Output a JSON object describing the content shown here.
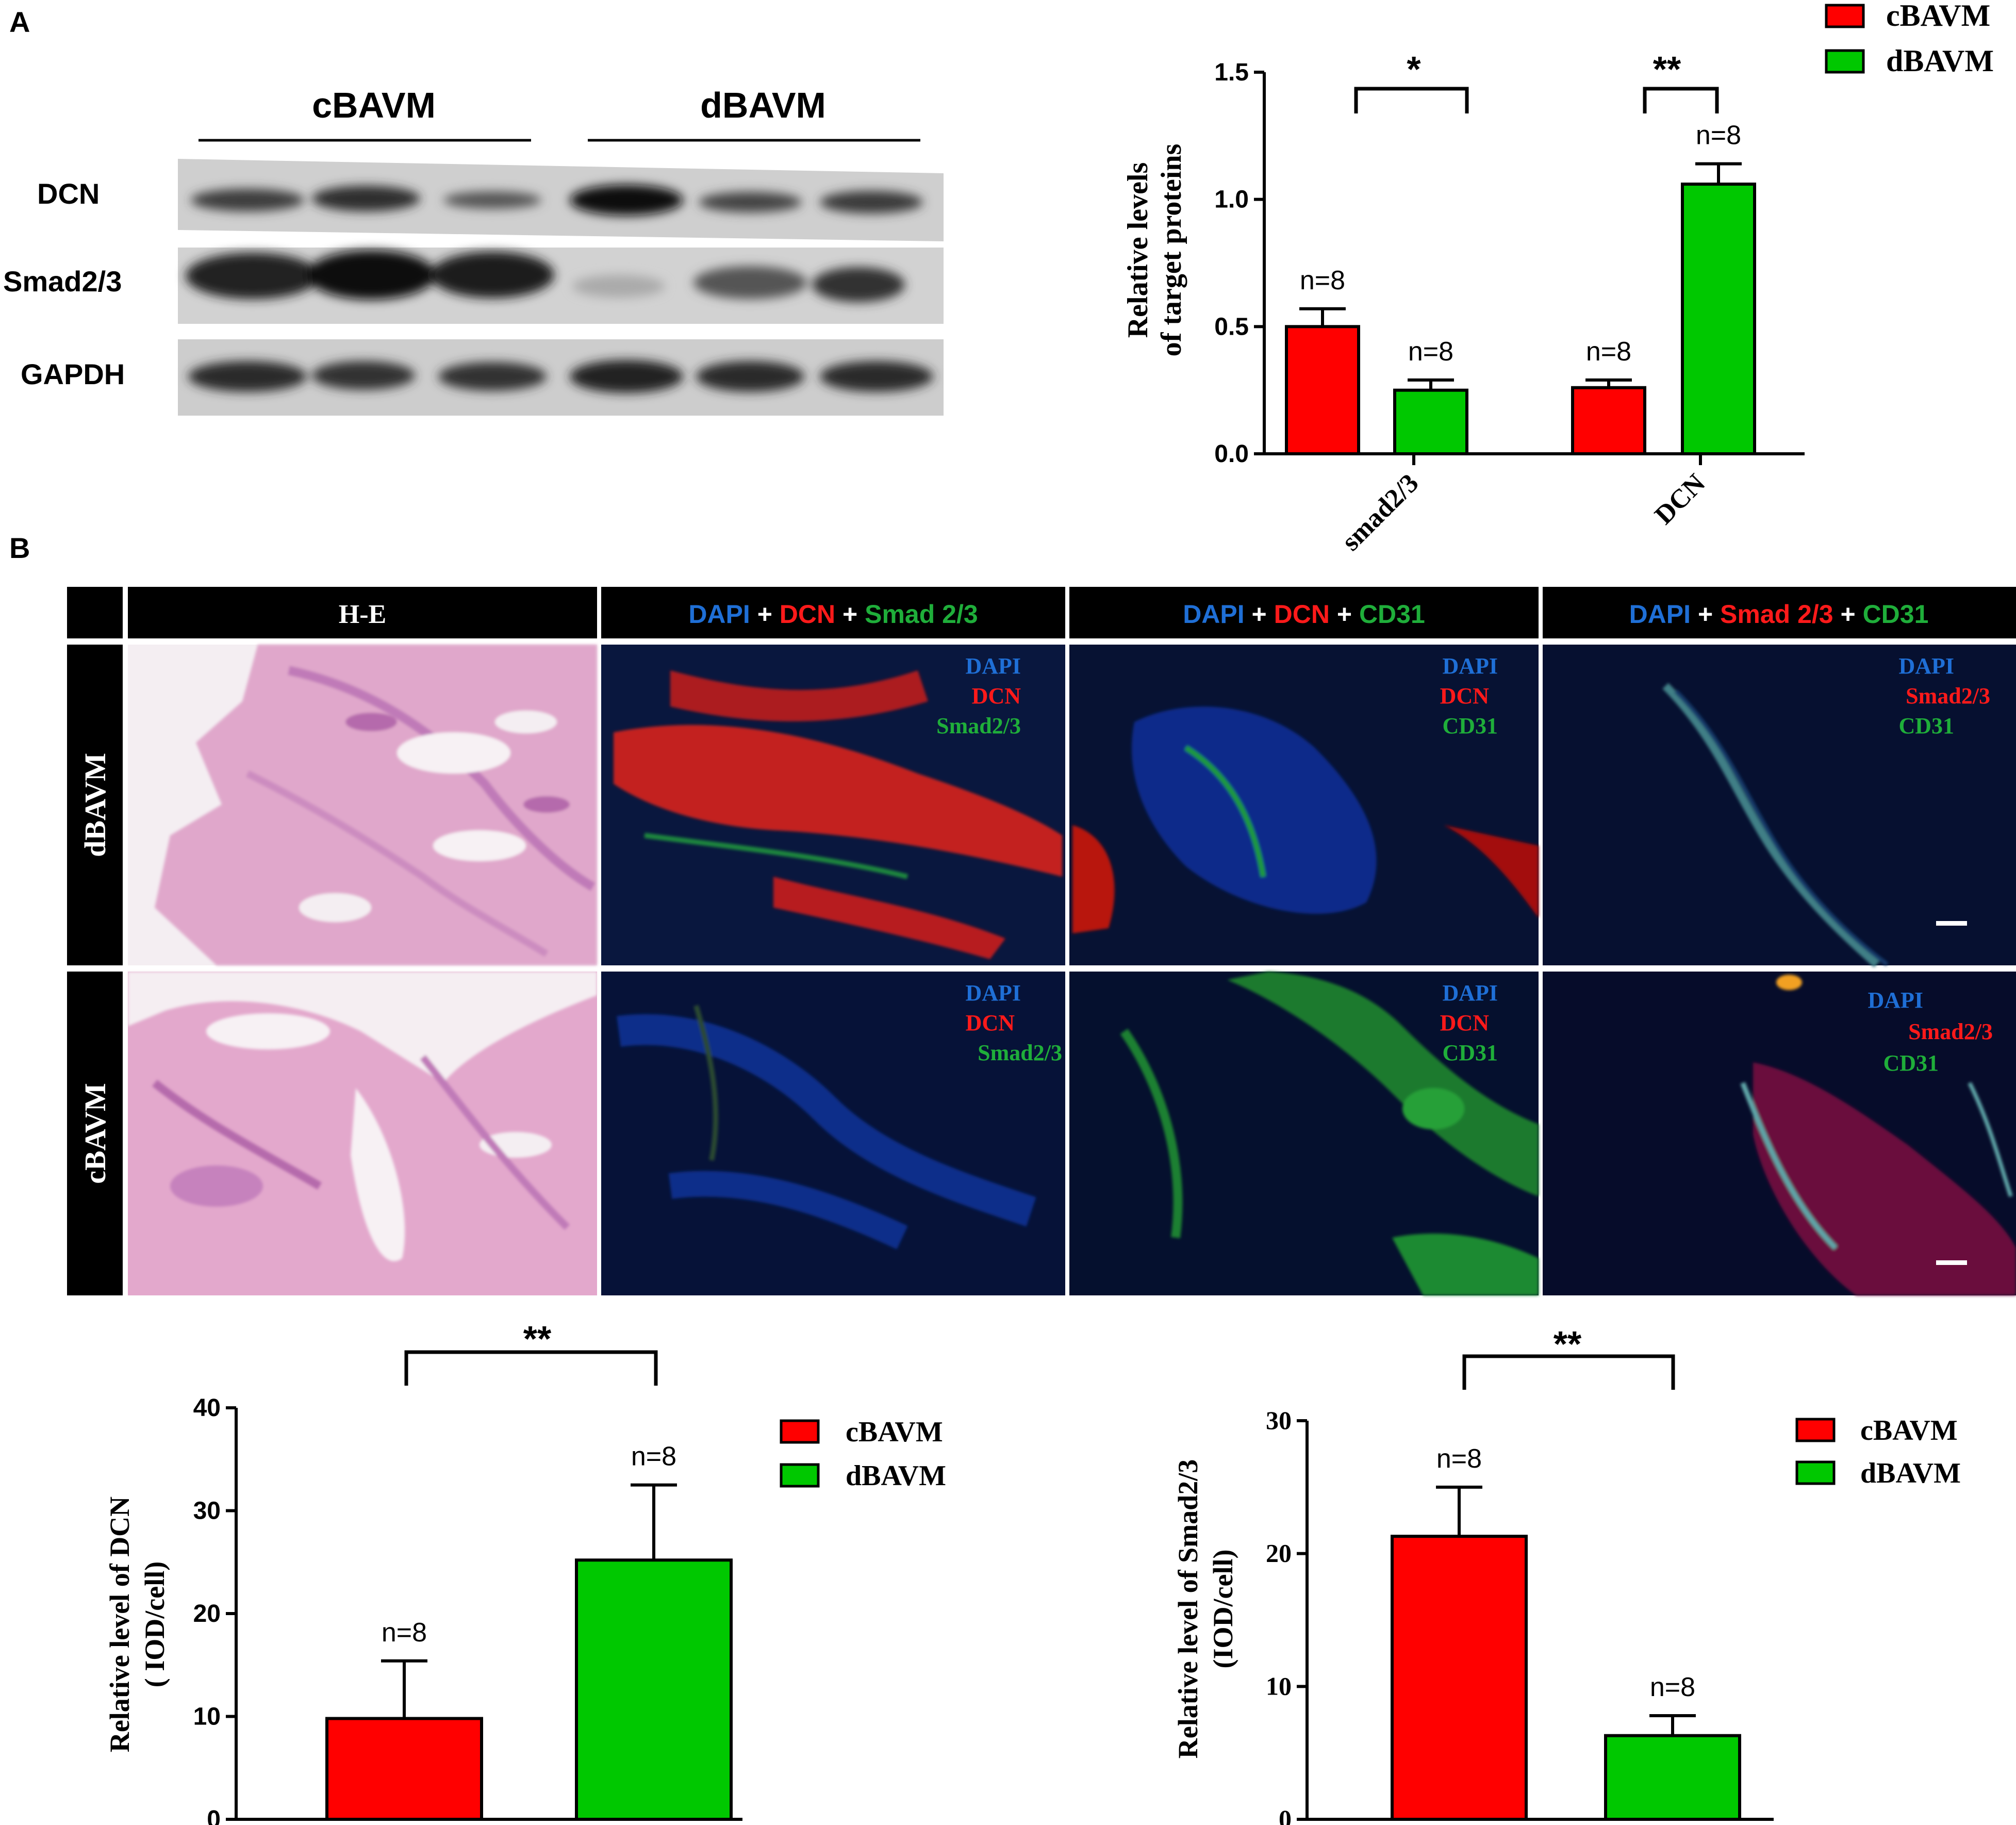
{
  "panel_a": {
    "label": "A",
    "blot": {
      "groups": [
        "cBAVM",
        "dBAVM"
      ],
      "rows": [
        "DCN",
        "Smad2/3",
        "GAPDH"
      ]
    },
    "legend": [
      "cBAVM",
      "dBAVM"
    ],
    "chart": {
      "ylabel_line1": "Relative levels",
      "ylabel_line2": "of target proteins",
      "sig": [
        "*",
        "**"
      ]
    }
  },
  "panel_b": {
    "label": "B",
    "columns": {
      "he": "H-E",
      "c2": [
        "DAPI",
        " + ",
        "DCN",
        " + ",
        "Smad 2/3"
      ],
      "c3": [
        "DAPI",
        " + ",
        "DCN",
        " + ",
        "CD31"
      ],
      "c4": [
        "DAPI",
        " + ",
        "Smad 2/3",
        " + ",
        "CD31"
      ]
    },
    "rows": [
      "dBAVM",
      "cBAVM"
    ],
    "overlays": {
      "c2": [
        "DAPI",
        "DCN",
        "Smad2/3"
      ],
      "c3": [
        "DAPI",
        "DCN",
        "CD31"
      ],
      "c4": [
        "DAPI",
        "Smad2/3",
        "CD31"
      ]
    },
    "dcn_chart": {
      "ylabel_line1": "Relative level of DCN",
      "ylabel_line2": "( IOD/cell)",
      "sig": "**",
      "legend": [
        "cBAVM",
        "dBAVM"
      ]
    },
    "smad_chart": {
      "ylabel_line1": "Relative level of Smad2/3",
      "ylabel_line2": "(IOD/cell)",
      "sig": "**",
      "legend": [
        "cBAVM",
        "dBAVM"
      ]
    }
  },
  "colors": {
    "cBAVM": "#ff0000",
    "dBAVM": "#00c800",
    "dapi": "#1f6fd6",
    "dcn": "#ff1a1a",
    "smad": "#1fae3a",
    "cd31": "#1fae3a",
    "he": "#e3a8cc"
  },
  "chart_data": [
    {
      "type": "bar",
      "categories": [
        "smad2/3",
        "DCN"
      ],
      "series": [
        {
          "name": "cBAVM",
          "values": [
            0.5,
            0.26
          ],
          "errors": [
            0.07,
            0.03
          ],
          "n_labels": [
            "n=8",
            "n=8"
          ]
        },
        {
          "name": "dBAVM",
          "values": [
            0.25,
            1.06
          ],
          "errors": [
            0.04,
            0.08
          ],
          "n_labels": [
            "n=8",
            "n=8"
          ]
        }
      ],
      "ylim": [
        0,
        1.5
      ],
      "yticks": [
        "0.0",
        "0.5",
        "1.0",
        "1.5"
      ],
      "ytick_values": [
        0,
        0.5,
        1.0,
        1.5
      ],
      "ylabel": "Relative levels of target proteins",
      "significance": [
        "*",
        "**"
      ],
      "legend": "top-right"
    },
    {
      "type": "bar",
      "categories": [
        "cBAVM",
        "dBAVM"
      ],
      "values": [
        9.8,
        25.2
      ],
      "errors": [
        5.6,
        7.3
      ],
      "n_labels": [
        "n=8",
        "n=8"
      ],
      "ylim": [
        0,
        40
      ],
      "yticks": [
        "0",
        "10",
        "20",
        "30",
        "40"
      ],
      "ytick_values": [
        0,
        10,
        20,
        30,
        40
      ],
      "ylabel": "Relative level of DCN ( IOD/cell)",
      "significance": "**",
      "legend": "top-right"
    },
    {
      "type": "bar",
      "categories": [
        "cBAVM",
        "dBAVM"
      ],
      "values": [
        21.3,
        6.3
      ],
      "errors": [
        3.7,
        1.5
      ],
      "n_labels": [
        "n=8",
        "n=8"
      ],
      "ylim": [
        0,
        30
      ],
      "yticks": [
        "0",
        "10",
        "20",
        "30"
      ],
      "ytick_values": [
        0,
        10,
        20,
        30
      ],
      "ylabel": "Relative level of Smad2/3 (IOD/cell)",
      "significance": "**",
      "legend": "top-right"
    }
  ]
}
